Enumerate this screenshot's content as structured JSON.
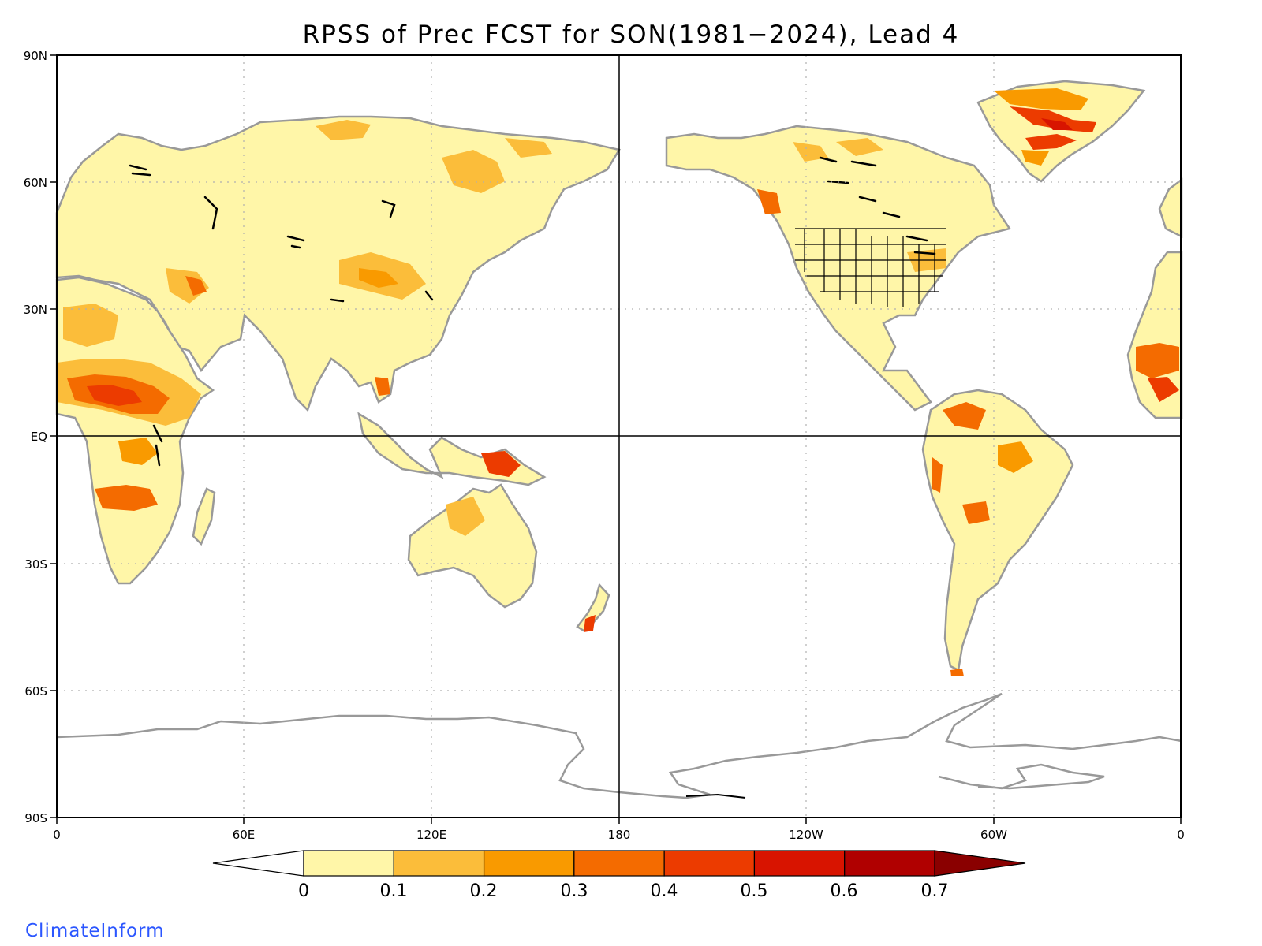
{
  "title": "RPSS of Prec FCST for SON(1981−2024), Lead 4",
  "brand": "ClimateInform",
  "map": {
    "lat_ticks": [
      "90N",
      "60N",
      "30N",
      "EQ",
      "30S",
      "60S",
      "90S"
    ],
    "lon_ticks": [
      "0",
      "60E",
      "120E",
      "180",
      "120W",
      "60W",
      "0"
    ],
    "grid": "dotted",
    "reference_lines": [
      "Equator",
      "180"
    ]
  },
  "colorbar": {
    "labels": [
      "0",
      "0.1",
      "0.2",
      "0.3",
      "0.4",
      "0.5",
      "0.6",
      "0.7"
    ],
    "colors": [
      "#fff6a8",
      "#fbbd3a",
      "#f99a00",
      "#f46b00",
      "#ec3b00",
      "#d81400",
      "#b00000",
      "#8a0000"
    ],
    "below_color": "#ffffff"
  },
  "colors": {
    "land_outline": "#999999",
    "lakes": "#000000",
    "frame": "#000000",
    "brand": "#2b56ff"
  }
}
